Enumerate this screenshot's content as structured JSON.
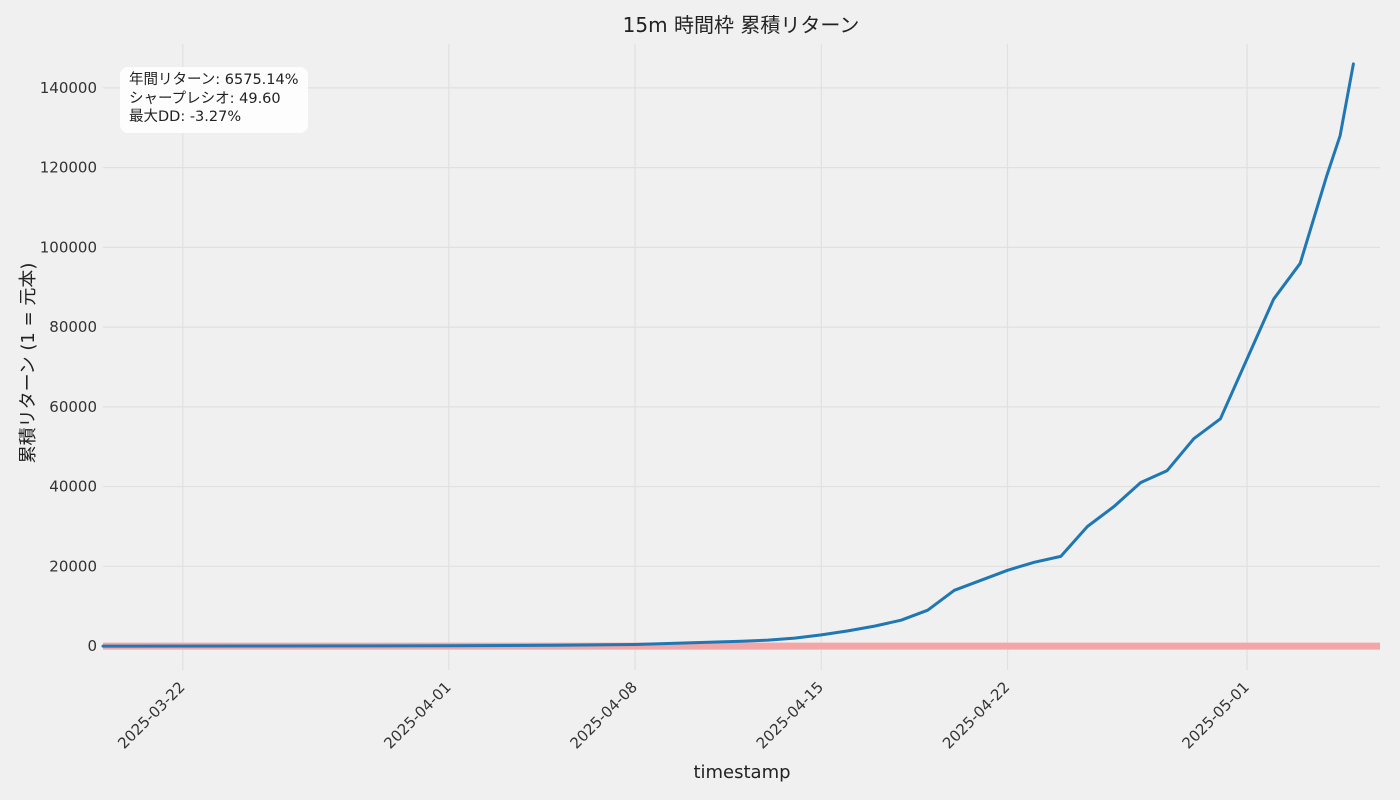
{
  "chart_data": {
    "type": "line",
    "title": "15m 時間枠 累積リターン",
    "xlabel": "timestamp",
    "ylabel": "累積リターン (1 = 元本)",
    "x_ticks": [
      "2025-03-22",
      "2025-04-01",
      "2025-04-08",
      "2025-04-15",
      "2025-04-22",
      "2025-05-01"
    ],
    "y_ticks": [
      0,
      20000,
      40000,
      60000,
      80000,
      100000,
      120000,
      140000
    ],
    "xlim": [
      "2025-03-19",
      "2025-05-06"
    ],
    "ylim": [
      -6000,
      151000
    ],
    "grid": true,
    "reference_line": {
      "y": 0,
      "color": "#f4a6a6"
    },
    "series": [
      {
        "color": "#1f77b4",
        "x": [
          "2025-03-19",
          "2025-03-25",
          "2025-04-01",
          "2025-04-05",
          "2025-04-08",
          "2025-04-10",
          "2025-04-12",
          "2025-04-13",
          "2025-04-14",
          "2025-04-15",
          "2025-04-16",
          "2025-04-17",
          "2025-04-18",
          "2025-04-19",
          "2025-04-20",
          "2025-04-21",
          "2025-04-22",
          "2025-04-23",
          "2025-04-24",
          "2025-04-25",
          "2025-04-26",
          "2025-04-27",
          "2025-04-28",
          "2025-04-29",
          "2025-04-30",
          "2025-05-01",
          "2025-05-02",
          "2025-05-03",
          "2025-05-04"
        ],
        "y": [
          1,
          15,
          60,
          200,
          400,
          800,
          1200,
          1500,
          2000,
          2800,
          3800,
          5000,
          6500,
          9000,
          14000,
          16500,
          19000,
          21000,
          22500,
          30000,
          35000,
          41000,
          44000,
          52000,
          57000,
          72000,
          87000,
          96000,
          118000
        ]
      }
    ],
    "series_tail": {
      "x": [
        "2025-05-04 12:00",
        "2025-05-05"
      ],
      "y": [
        128000,
        146000
      ]
    }
  },
  "stats": {
    "annual_return": "年間リターン: 6575.14%",
    "sharpe": "シャープレシオ: 49.60",
    "max_dd": "最大DD: -3.27%"
  }
}
